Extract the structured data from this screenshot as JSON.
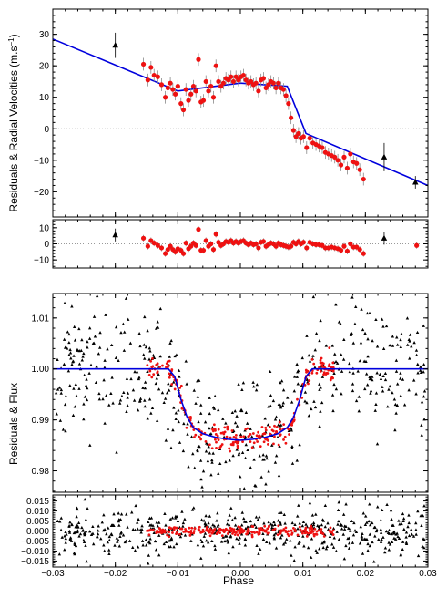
{
  "chart_data": {
    "type": "scatter",
    "x_label": "Phase",
    "x_range": [
      -0.03,
      0.03
    ],
    "x_ticks": [
      -0.03,
      -0.02,
      -0.01,
      0.0,
      0.01,
      0.02,
      0.03
    ],
    "x_tick_labels": [
      "−0.03",
      "−0.02",
      "−0.01",
      "0.00",
      "0.01",
      "0.02",
      "0.03"
    ],
    "left_labels": {
      "rv": "Residuals & Radial Velocities (m.s",
      "rv_sup": "−1",
      "rv_close": ")",
      "flux": "Residuals & Flux"
    },
    "colors": {
      "model": "#0000dd",
      "red_points": "#ee1111",
      "black_points": "#000000"
    },
    "panels": [
      {
        "id": "rv",
        "ylim": [
          -28,
          38
        ],
        "y_ticks": [
          -20,
          -10,
          0,
          10,
          20,
          30
        ],
        "y_tick_labels": [
          "−20",
          "−10",
          "0",
          "10",
          "20",
          "30"
        ],
        "zero_line": true,
        "model_line": {
          "x": [
            -0.03,
            -0.01,
            0.0,
            0.0075,
            0.0105,
            0.03
          ],
          "y": [
            28.5,
            12.0,
            14.5,
            13.5,
            -1.5,
            -18.0
          ]
        },
        "black_points": {
          "x": [
            -0.02,
            0.023,
            0.028
          ],
          "y": [
            26.5,
            -9.0,
            -17.0
          ],
          "err": [
            4.0,
            4.5,
            2.0
          ]
        },
        "red_points": {
          "x": [
            -0.0155,
            -0.0148,
            -0.0143,
            -0.0138,
            -0.0132,
            -0.0126,
            -0.012,
            -0.0116,
            -0.0112,
            -0.0108,
            -0.0104,
            -0.01,
            -0.0095,
            -0.0091,
            -0.0087,
            -0.0083,
            -0.0079,
            -0.0075,
            -0.0071,
            -0.0067,
            -0.0063,
            -0.0059,
            -0.0055,
            -0.0051,
            -0.0047,
            -0.0043,
            -0.0039,
            -0.0035,
            -0.0031,
            -0.0027,
            -0.0023,
            -0.0019,
            -0.0015,
            -0.0011,
            -0.0007,
            -0.0003,
            0.0001,
            0.0005,
            0.0009,
            0.0013,
            0.0017,
            0.0021,
            0.0025,
            0.0029,
            0.0033,
            0.0037,
            0.0041,
            0.0045,
            0.0049,
            0.0053,
            0.0057,
            0.0061,
            0.0065,
            0.0069,
            0.0073,
            0.0077,
            0.0081,
            0.0085,
            0.0089,
            0.0093,
            0.0097,
            0.0101,
            0.0106,
            0.0111,
            0.0116,
            0.0121,
            0.0126,
            0.0131,
            0.0136,
            0.0141,
            0.0146,
            0.0151,
            0.0156,
            0.0161,
            0.0166,
            0.0171,
            0.0176,
            0.0181,
            0.0186,
            0.0191,
            0.0197
          ],
          "y": [
            20.5,
            15.5,
            19.5,
            17.0,
            16.5,
            14.0,
            10.0,
            13.0,
            14.5,
            12.5,
            11.0,
            13.5,
            8.0,
            6.0,
            12.5,
            9.0,
            11.0,
            13.5,
            12.0,
            22.0,
            8.5,
            9.0,
            15.0,
            12.0,
            13.5,
            10.0,
            20.0,
            15.0,
            13.5,
            14.5,
            16.0,
            15.5,
            16.5,
            15.0,
            16.5,
            15.5,
            16.5,
            17.0,
            15.5,
            14.5,
            15.0,
            14.0,
            14.5,
            12.0,
            15.5,
            16.0,
            13.0,
            14.0,
            15.0,
            14.5,
            13.0,
            14.5,
            13.0,
            12.5,
            10.5,
            8.0,
            3.5,
            -0.5,
            -2.5,
            -1.5,
            -3.0,
            -2.5,
            -6.0,
            -3.0,
            -4.5,
            -5.0,
            -5.5,
            -6.0,
            -7.5,
            -8.0,
            -8.5,
            -9.0,
            -10.0,
            -11.5,
            -9.0,
            -12.5,
            -8.0,
            -10.5,
            -11.0,
            -13.0,
            -16.0
          ],
          "err": 2.0
        }
      },
      {
        "id": "rv_residuals",
        "ylim": [
          -15,
          15
        ],
        "y_ticks": [
          -10,
          0,
          10
        ],
        "y_tick_labels": [
          "−10",
          "0",
          "10"
        ],
        "zero_line": true,
        "black_points": {
          "x": [
            -0.02,
            0.023
          ],
          "y": [
            5.5,
            3.5
          ],
          "err": 4.0
        },
        "red_points": {
          "x": [
            -0.0155,
            -0.0148,
            -0.0143,
            -0.0138,
            -0.0132,
            -0.0126,
            -0.012,
            -0.0116,
            -0.0112,
            -0.0108,
            -0.0104,
            -0.01,
            -0.0095,
            -0.0091,
            -0.0087,
            -0.0083,
            -0.0079,
            -0.0075,
            -0.0071,
            -0.0067,
            -0.0063,
            -0.0059,
            -0.0055,
            -0.0051,
            -0.0047,
            -0.0043,
            -0.0039,
            -0.0035,
            -0.0031,
            -0.0027,
            -0.0023,
            -0.0019,
            -0.0015,
            -0.0011,
            -0.0007,
            -0.0003,
            0.0001,
            0.0005,
            0.0009,
            0.0013,
            0.0017,
            0.0021,
            0.0025,
            0.0029,
            0.0033,
            0.0037,
            0.0041,
            0.0045,
            0.0049,
            0.0053,
            0.0057,
            0.0061,
            0.0065,
            0.0069,
            0.0073,
            0.0077,
            0.0081,
            0.0085,
            0.0089,
            0.0093,
            0.0097,
            0.0101,
            0.0106,
            0.0111,
            0.0116,
            0.0121,
            0.0126,
            0.0131,
            0.0136,
            0.0141,
            0.0146,
            0.0151,
            0.0156,
            0.0161,
            0.0166,
            0.0171,
            0.0176,
            0.0181,
            0.0186,
            0.0191,
            0.0197,
            0.0282
          ],
          "y": [
            3.5,
            -1.5,
            2.0,
            0.5,
            -1.0,
            -2.5,
            -6.0,
            -3.5,
            -1.5,
            -3.5,
            -5.0,
            -3.0,
            -4.0,
            -6.0,
            0.5,
            -3.0,
            -1.5,
            0.5,
            -1.0,
            9.0,
            -4.0,
            -4.0,
            2.0,
            -1.5,
            0.0,
            -3.5,
            6.0,
            1.0,
            -1.0,
            0.0,
            1.5,
            1.0,
            2.0,
            0.5,
            1.5,
            0.5,
            1.5,
            2.0,
            0.5,
            -0.5,
            0.5,
            -0.5,
            0.0,
            -2.5,
            1.0,
            1.5,
            -1.5,
            -0.5,
            0.5,
            0.0,
            -1.5,
            0.5,
            -0.5,
            -1.0,
            -1.5,
            -2.0,
            -1.5,
            1.0,
            0.0,
            1.5,
            0.0,
            1.0,
            -2.5,
            1.0,
            0.0,
            -0.5,
            -0.5,
            -1.0,
            -2.5,
            -2.5,
            -2.0,
            -2.5,
            -3.0,
            -4.0,
            -1.5,
            -4.5,
            0.0,
            -2.0,
            -2.0,
            -3.5,
            -6.0,
            -1.0
          ],
          "err": 2.0
        }
      },
      {
        "id": "flux",
        "ylim": [
          0.9758,
          1.0148
        ],
        "y_ticks": [
          0.98,
          0.99,
          1.0,
          1.01
        ],
        "y_tick_labels": [
          "0.98",
          "0.99",
          "1.00",
          "1.01"
        ],
        "zero_line": false,
        "model_line": {
          "x": [
            -0.03,
            -0.0115,
            -0.0105,
            -0.0095,
            -0.0085,
            -0.0075,
            -0.006,
            -0.004,
            -0.002,
            0.0,
            0.002,
            0.004,
            0.006,
            0.0075,
            0.0085,
            0.0095,
            0.0105,
            0.0115,
            0.03
          ],
          "y": [
            1.0,
            1.0,
            0.9985,
            0.994,
            0.9905,
            0.9885,
            0.9873,
            0.9866,
            0.9862,
            0.986,
            0.9862,
            0.9866,
            0.9873,
            0.9885,
            0.9905,
            0.994,
            0.9985,
            1.0,
            1.0
          ]
        },
        "black_scatter": {
          "n": 520,
          "x_min": -0.0295,
          "x_max": 0.0295,
          "sigma": 0.0065,
          "seed": 11
        },
        "red_scatter": {
          "n": 240,
          "x_min": -0.015,
          "x_max": 0.015,
          "sigma": 0.0011,
          "seed": 7
        }
      },
      {
        "id": "flux_residuals",
        "ylim": [
          -0.018,
          0.018
        ],
        "y_ticks": [
          -0.015,
          -0.01,
          -0.005,
          0.0,
          0.005,
          0.01,
          0.015
        ],
        "y_tick_labels": [
          "−0.015",
          "−0.010",
          "−0.005",
          "0.000",
          "0.005",
          "0.010",
          "0.015"
        ],
        "zero_line": false,
        "black_scatter": {
          "n": 520,
          "x_min": -0.0295,
          "x_max": 0.0295,
          "sigma": 0.0065,
          "seed": 23
        },
        "red_scatter": {
          "n": 240,
          "x_min": -0.015,
          "x_max": 0.015,
          "sigma": 0.0011,
          "seed": 5
        }
      }
    ]
  }
}
